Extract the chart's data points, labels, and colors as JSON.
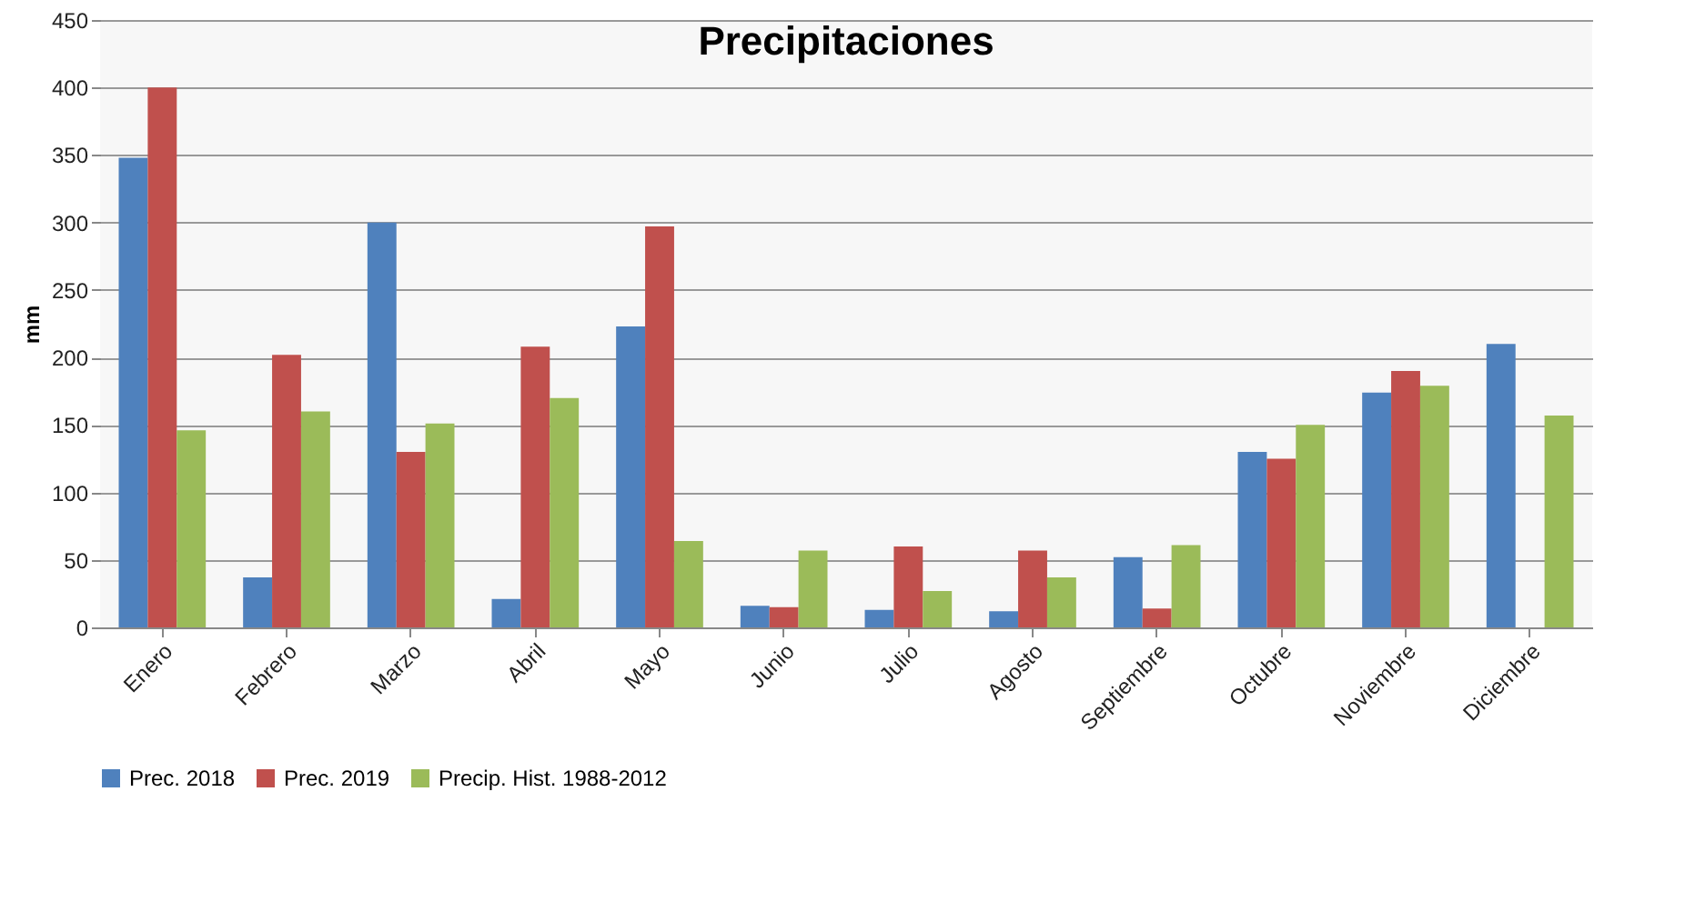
{
  "chart_data": {
    "type": "bar",
    "title": "Precipitaciones",
    "ylabel": "mm",
    "categories": [
      "Enero",
      "Febrero",
      "Marzo",
      "Abril",
      "Mayo",
      "Junio",
      "Julio",
      "Agosto",
      "Septiembre",
      "Octubre",
      "Noviembre",
      "Diciembre"
    ],
    "series": [
      {
        "name": "Prec. 2018",
        "color": "#4f81bd",
        "values": [
          348,
          37,
          300,
          21,
          223,
          16,
          13,
          12,
          52,
          130,
          174,
          210
        ]
      },
      {
        "name": "Prec. 2019",
        "color": "#c0504d",
        "values": [
          400,
          202,
          130,
          208,
          297,
          15,
          60,
          57,
          14,
          125,
          190,
          null
        ]
      },
      {
        "name": "Precip. Hist. 1988-2012",
        "color": "#9bbb59",
        "values": [
          146,
          160,
          151,
          170,
          64,
          57,
          27,
          37,
          61,
          150,
          179,
          157
        ]
      }
    ],
    "ylim": [
      0,
      450
    ],
    "yticks": [
      0,
      50,
      100,
      150,
      200,
      250,
      300,
      350,
      400,
      450
    ],
    "grid": "y",
    "legend": "bottom"
  }
}
